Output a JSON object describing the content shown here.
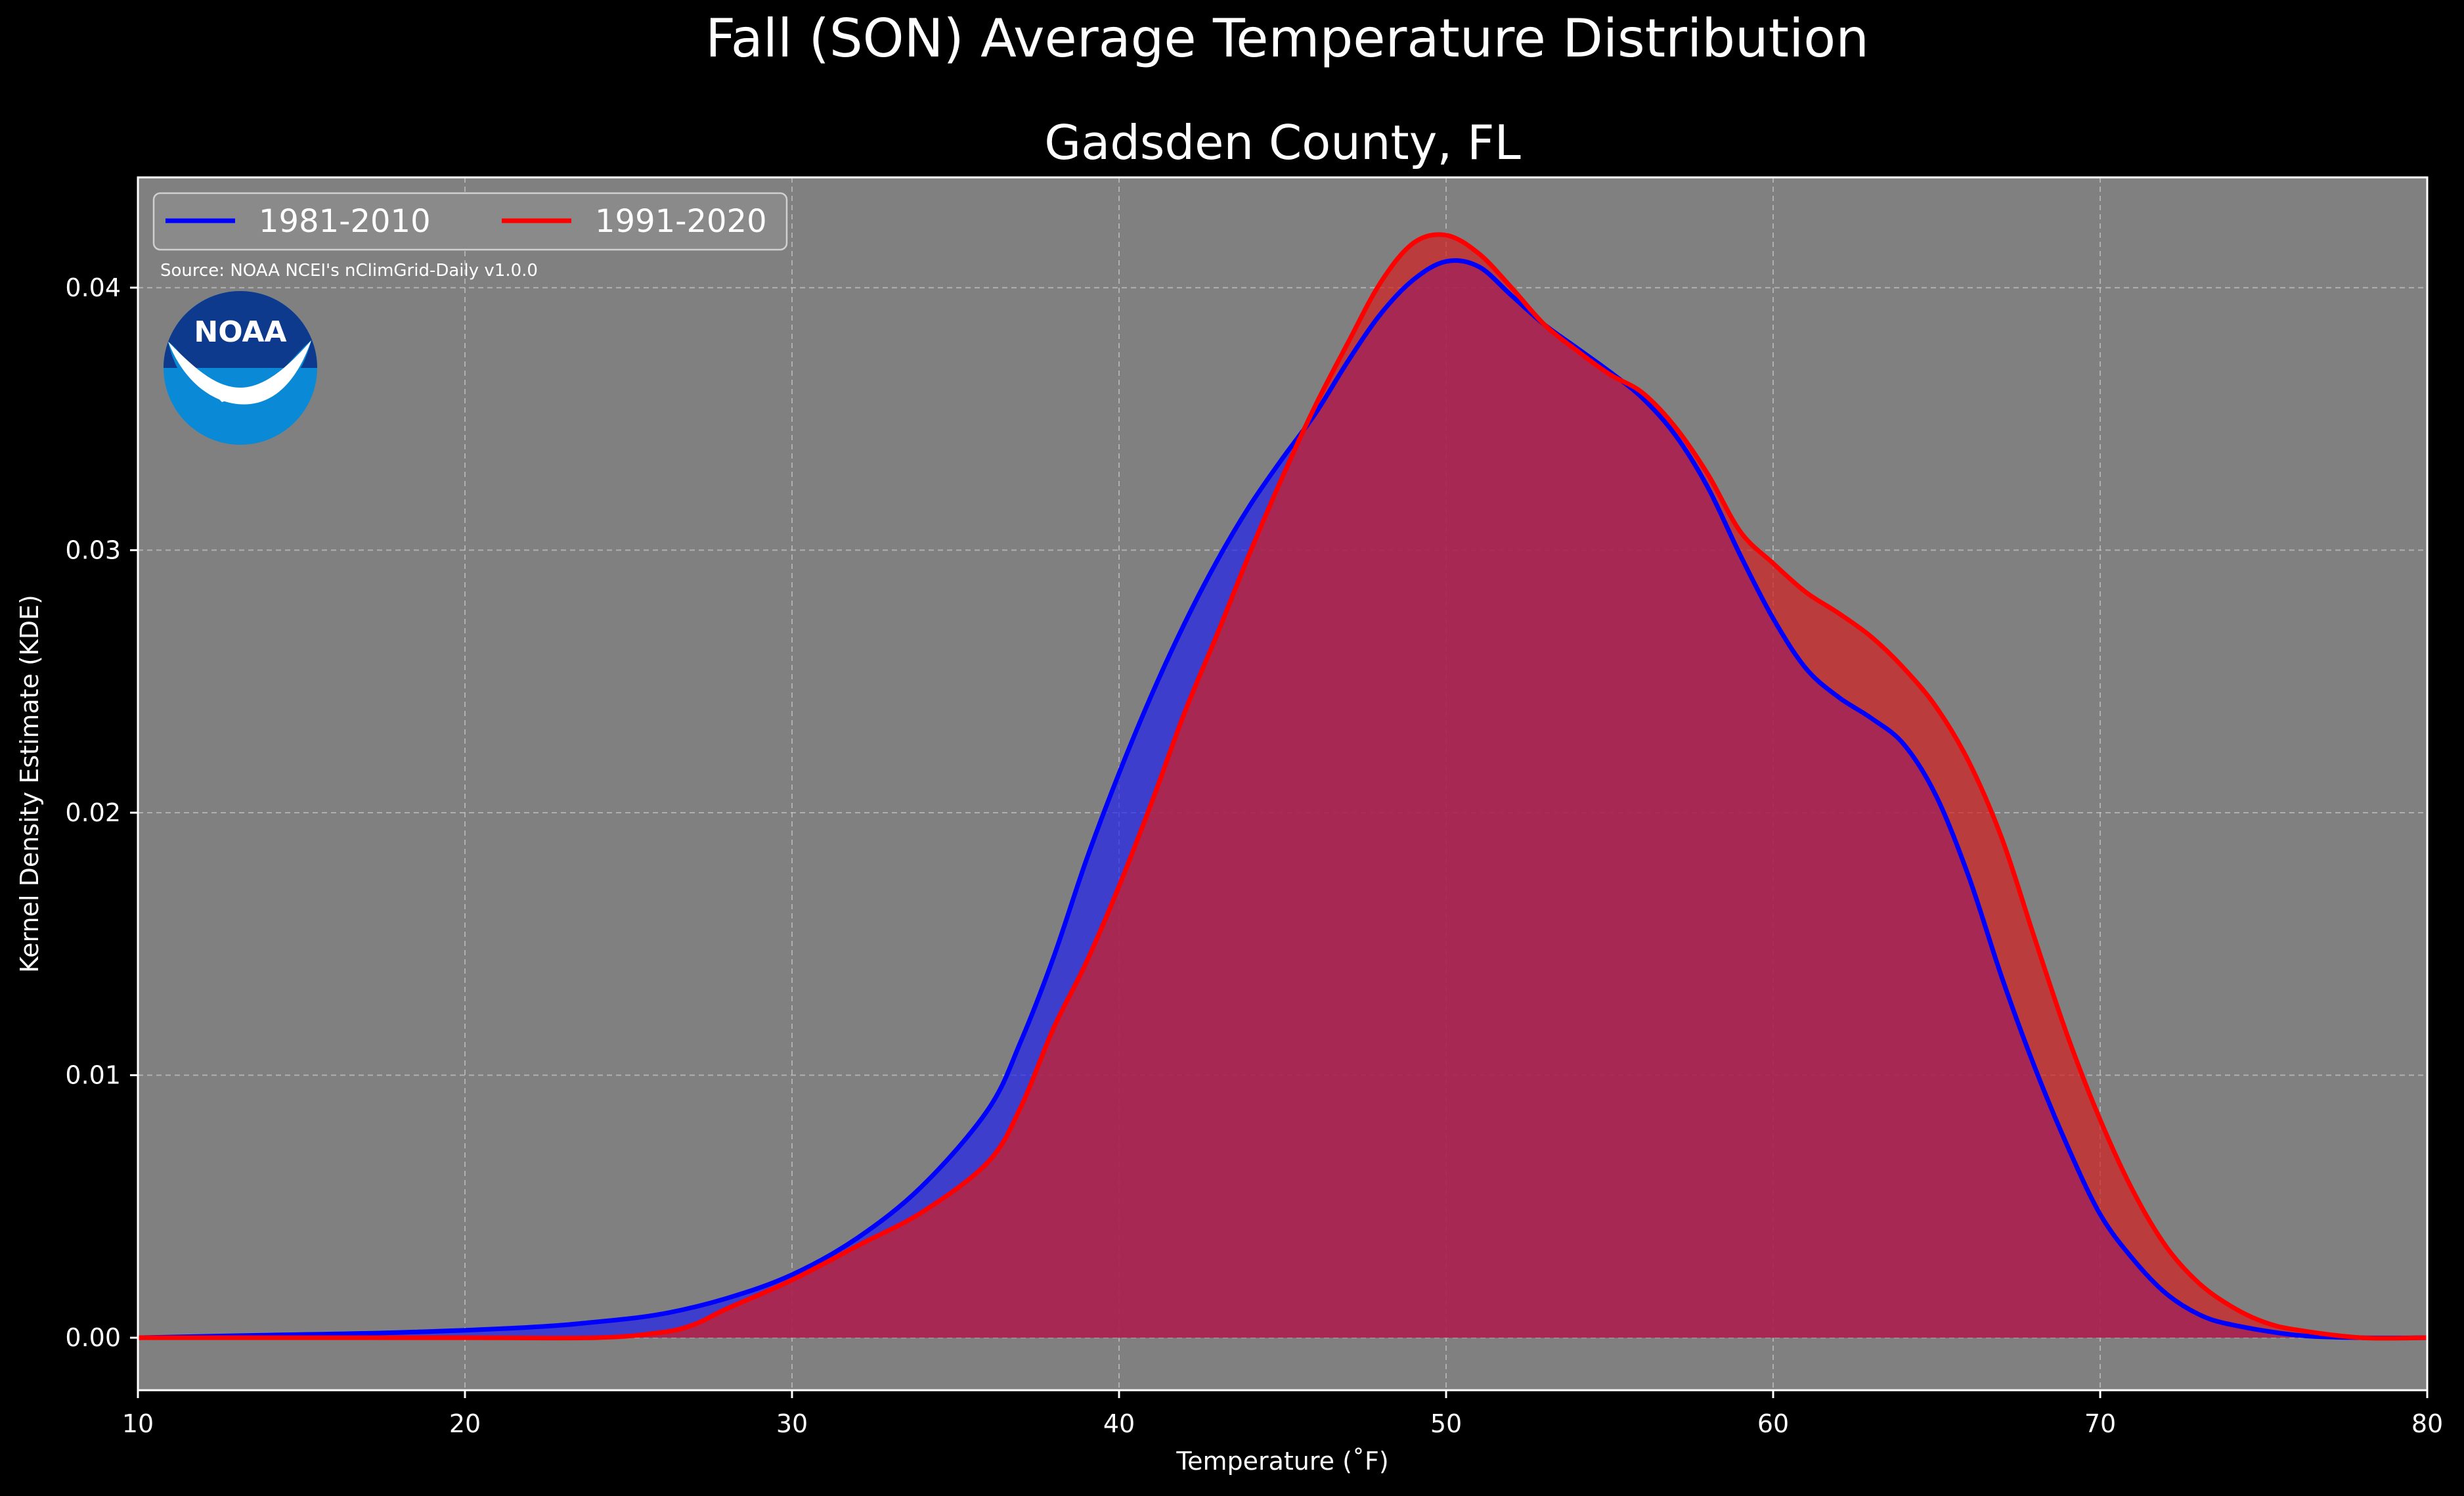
{
  "figure": {
    "suptitle": "Fall (SON) Average Temperature Distribution",
    "source": "Source: NOAA NCEI's nClimGrid-Daily v1.0.0",
    "logo_text": "NOAA",
    "background": "#000000",
    "plot_background": "#808080"
  },
  "chart_data": {
    "type": "area",
    "title": "Gadsden County, FL",
    "xlabel": "Temperature (˚F)",
    "ylabel": "Kernel Density Estimate (KDE)",
    "xlim": [
      10,
      80
    ],
    "ylim": [
      -0.002,
      0.0442
    ],
    "xticks": [
      10,
      20,
      30,
      40,
      50,
      60,
      70,
      80
    ],
    "xtick_labels": [
      "10",
      "20",
      "30",
      "40",
      "50",
      "60",
      "70",
      "80"
    ],
    "yticks": [
      0.0,
      0.01,
      0.02,
      0.03,
      0.04
    ],
    "ytick_labels": [
      "0.00",
      "0.01",
      "0.02",
      "0.03",
      "0.04"
    ],
    "grid": true,
    "legend_position": "top-left",
    "series": [
      {
        "name": "1981-2010",
        "color": "#0000ff",
        "fill": "#2222ee",
        "points": [
          [
            10,
            0.0
          ],
          [
            14,
            0.0001
          ],
          [
            18,
            0.0002
          ],
          [
            22,
            0.0004
          ],
          [
            24,
            0.0006
          ],
          [
            26,
            0.0009
          ],
          [
            28,
            0.0015
          ],
          [
            30,
            0.0024
          ],
          [
            32,
            0.0038
          ],
          [
            34,
            0.0058
          ],
          [
            36,
            0.0087
          ],
          [
            37,
            0.0113
          ],
          [
            38,
            0.0145
          ],
          [
            39,
            0.0182
          ],
          [
            40,
            0.0215
          ],
          [
            41,
            0.0245
          ],
          [
            42,
            0.0272
          ],
          [
            43,
            0.0296
          ],
          [
            44,
            0.0317
          ],
          [
            45,
            0.0335
          ],
          [
            46,
            0.0352
          ],
          [
            47,
            0.0372
          ],
          [
            48,
            0.039
          ],
          [
            49,
            0.0403
          ],
          [
            50,
            0.041
          ],
          [
            51,
            0.0408
          ],
          [
            52,
            0.0397
          ],
          [
            53,
            0.0386
          ],
          [
            54,
            0.0377
          ],
          [
            55,
            0.0368
          ],
          [
            56,
            0.0358
          ],
          [
            57,
            0.0344
          ],
          [
            58,
            0.0324
          ],
          [
            59,
            0.0298
          ],
          [
            60,
            0.0274
          ],
          [
            61,
            0.0255
          ],
          [
            62,
            0.0244
          ],
          [
            63,
            0.0236
          ],
          [
            64,
            0.0226
          ],
          [
            65,
            0.0206
          ],
          [
            66,
            0.0175
          ],
          [
            67,
            0.0137
          ],
          [
            68,
            0.0103
          ],
          [
            69,
            0.0073
          ],
          [
            70,
            0.0047
          ],
          [
            71,
            0.003
          ],
          [
            72,
            0.0017
          ],
          [
            73,
            0.0009
          ],
          [
            74,
            0.0005
          ],
          [
            76,
            0.0001
          ],
          [
            78,
            0.0
          ],
          [
            80,
            0.0
          ]
        ]
      },
      {
        "name": "1991-2020",
        "color": "#ff0000",
        "fill": "#d42020",
        "points": [
          [
            10,
            0.0
          ],
          [
            20,
            0.0
          ],
          [
            24,
            0.0
          ],
          [
            26,
            0.0002
          ],
          [
            27,
            0.0005
          ],
          [
            28,
            0.0011
          ],
          [
            30,
            0.0022
          ],
          [
            32,
            0.0035
          ],
          [
            34,
            0.0048
          ],
          [
            36,
            0.0067
          ],
          [
            37,
            0.0088
          ],
          [
            38,
            0.0118
          ],
          [
            39,
            0.0143
          ],
          [
            40,
            0.0172
          ],
          [
            41,
            0.0204
          ],
          [
            42,
            0.0238
          ],
          [
            43,
            0.0268
          ],
          [
            44,
            0.0299
          ],
          [
            45,
            0.0328
          ],
          [
            46,
            0.0355
          ],
          [
            47,
            0.0379
          ],
          [
            48,
            0.0402
          ],
          [
            49,
            0.0417
          ],
          [
            50,
            0.042
          ],
          [
            51,
            0.0413
          ],
          [
            52,
            0.04
          ],
          [
            53,
            0.0386
          ],
          [
            54,
            0.0376
          ],
          [
            55,
            0.0367
          ],
          [
            56,
            0.036
          ],
          [
            57,
            0.0347
          ],
          [
            58,
            0.0329
          ],
          [
            59,
            0.0307
          ],
          [
            60,
            0.0295
          ],
          [
            61,
            0.0284
          ],
          [
            62,
            0.0276
          ],
          [
            63,
            0.0267
          ],
          [
            64,
            0.0255
          ],
          [
            65,
            0.024
          ],
          [
            66,
            0.0219
          ],
          [
            67,
            0.019
          ],
          [
            68,
            0.0152
          ],
          [
            69,
            0.0115
          ],
          [
            70,
            0.0083
          ],
          [
            71,
            0.0056
          ],
          [
            72,
            0.0035
          ],
          [
            73,
            0.0021
          ],
          [
            74,
            0.0012
          ],
          [
            75,
            0.0006
          ],
          [
            76,
            0.0003
          ],
          [
            78,
            0.0
          ],
          [
            80,
            0.0
          ]
        ]
      }
    ]
  }
}
